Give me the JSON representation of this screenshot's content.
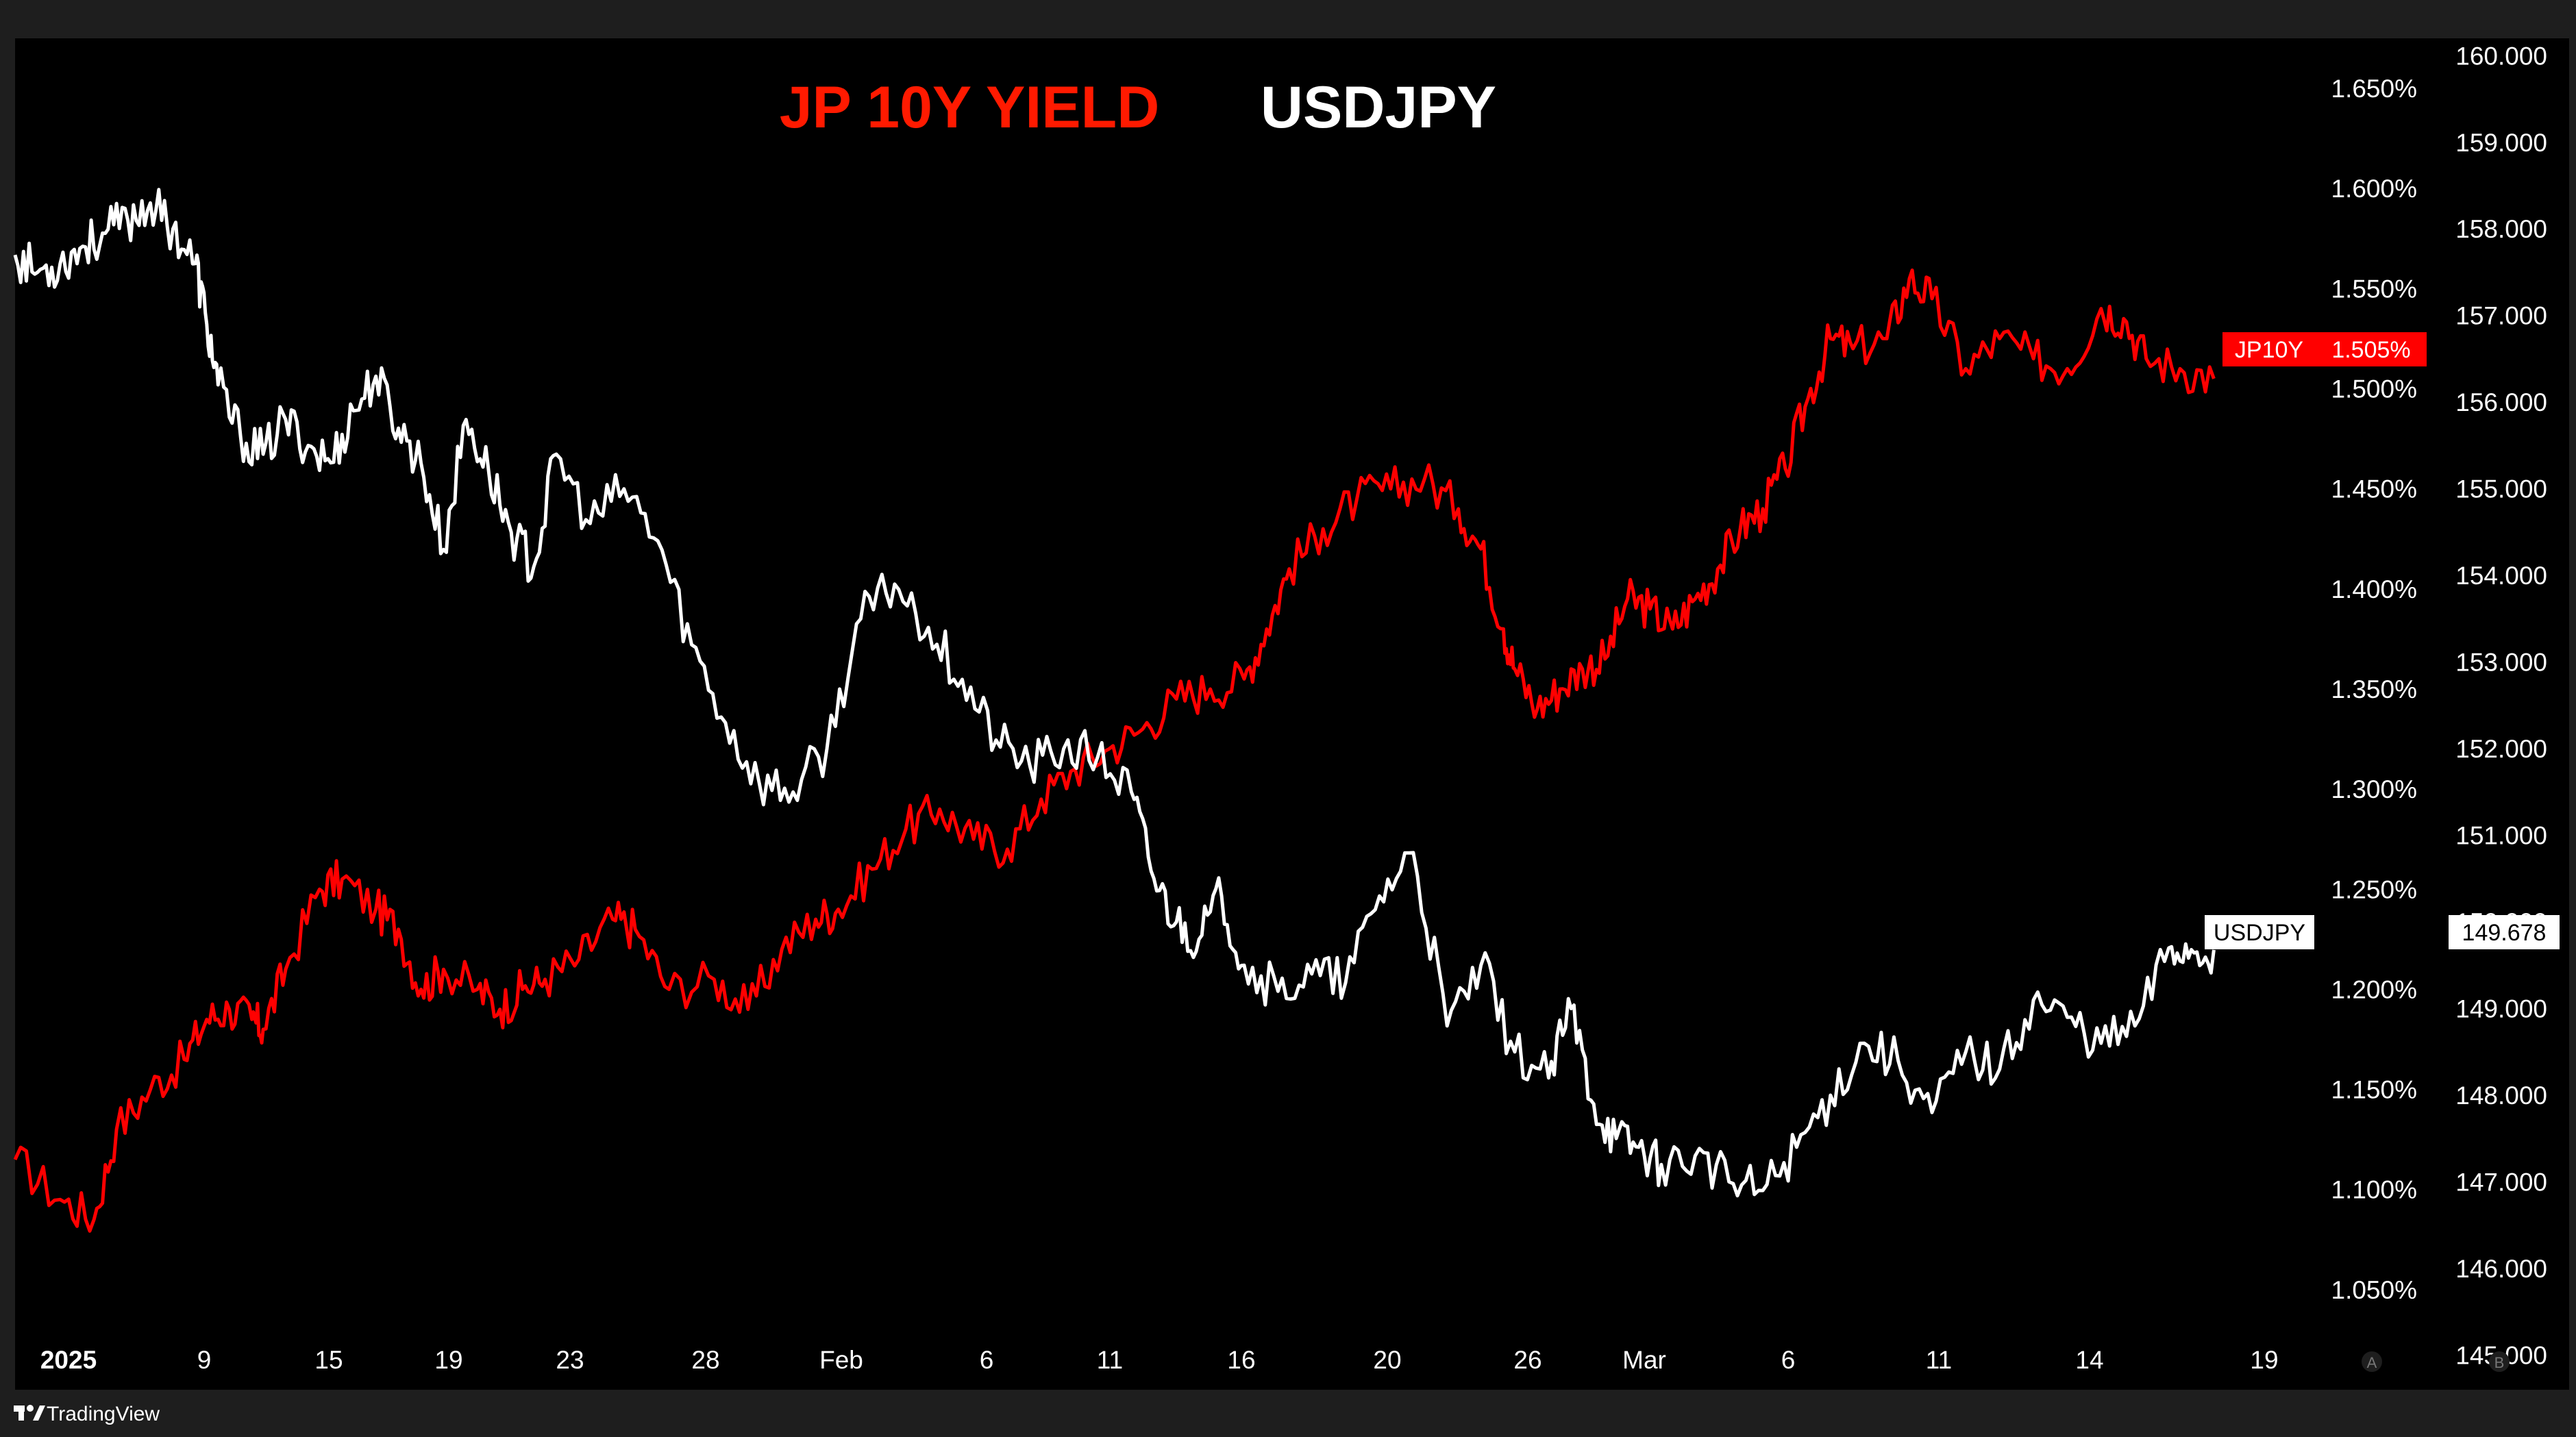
{
  "chart_data": {
    "type": "line",
    "title_left": "JP 10Y YIELD",
    "title_right": "USDJPY",
    "colors": {
      "background": "#000000",
      "frame": "#1e1e1e",
      "jp10y": "#ff0000",
      "usdjpy": "#ffffff"
    },
    "x_tick_labels": [
      "2025",
      "9",
      "15",
      "19",
      "23",
      "28",
      "Feb",
      "6",
      "11",
      "16",
      "20",
      "26",
      "Mar",
      "6",
      "11",
      "14",
      "19"
    ],
    "left_axis": {
      "name": "A",
      "ylim": [
        1.0,
        1.675
      ],
      "ticks": [
        "1.650%",
        "1.600%",
        "1.550%",
        "1.500%",
        "1.450%",
        "1.400%",
        "1.350%",
        "1.300%",
        "1.250%",
        "1.200%",
        "1.150%",
        "1.100%",
        "1.050%"
      ],
      "tick_values": [
        1.65,
        1.6,
        1.55,
        1.5,
        1.45,
        1.4,
        1.35,
        1.3,
        1.25,
        1.2,
        1.15,
        1.1,
        1.05
      ]
    },
    "right_axis": {
      "name": "B",
      "ylim": [
        144.6,
        160.2
      ],
      "ticks": [
        "160.000",
        "159.000",
        "158.000",
        "157.000",
        "156.000",
        "155.000",
        "154.000",
        "153.000",
        "152.000",
        "151.000",
        "150.000",
        "149.000",
        "148.000",
        "147.000",
        "146.000",
        "145.000"
      ],
      "tick_values": [
        160,
        159,
        158,
        157,
        156,
        155,
        154,
        153,
        152,
        151,
        150,
        149,
        148,
        147,
        146,
        145
      ]
    },
    "series": [
      {
        "name": "JP10Y",
        "axis": "left",
        "last_value_label": "1.505%",
        "x": [
          0,
          4,
          7,
          9,
          12,
          15,
          17,
          19,
          21,
          22,
          24,
          27,
          29,
          32,
          34,
          36,
          38,
          41,
          43,
          45,
          47,
          50,
          53,
          55,
          58,
          62,
          65,
          68,
          71,
          73,
          76,
          79,
          82,
          85,
          88,
          91,
          94,
          97,
          100,
          103,
          106,
          109,
          111,
          113,
          116,
          119,
          122,
          125,
          128,
          130,
          132,
          133,
          135,
          137,
          139,
          141,
          143,
          145,
          147,
          149,
          151,
          153,
          155,
          157,
          159,
          161,
          163,
          166,
          168,
          170,
          173,
          176,
          179,
          182,
          185,
          187,
          189,
          192,
          195
        ],
        "values": [
          1.115,
          1.095,
          1.085,
          1.13,
          1.15,
          1.165,
          1.185,
          1.19,
          1.185,
          1.18,
          1.21,
          1.25,
          1.255,
          1.24,
          1.23,
          1.2,
          1.21,
          1.2,
          1.19,
          1.2,
          1.205,
          1.215,
          1.235,
          1.23,
          1.2,
          1.205,
          1.19,
          1.22,
          1.235,
          1.24,
          1.26,
          1.28,
          1.29,
          1.275,
          1.27,
          1.295,
          1.31,
          1.32,
          1.33,
          1.345,
          1.35,
          1.355,
          1.38,
          1.41,
          1.43,
          1.445,
          1.45,
          1.455,
          1.44,
          1.42,
          1.38,
          1.36,
          1.34,
          1.35,
          1.36,
          1.365,
          1.395,
          1.39,
          1.38,
          1.395,
          1.41,
          1.43,
          1.44,
          1.46,
          1.495,
          1.525,
          1.52,
          1.525,
          1.555,
          1.545,
          1.51,
          1.525,
          1.515,
          1.51,
          1.54,
          1.535,
          1.515,
          1.51,
          1.505
        ]
      },
      {
        "name": "USDJPY",
        "axis": "right",
        "last_value_label": "149.678",
        "x": [
          0,
          2,
          4,
          6,
          8,
          10,
          12,
          14,
          16,
          17,
          18,
          20,
          22,
          24,
          26,
          28,
          30,
          32,
          34,
          36,
          38,
          40,
          42,
          44,
          46,
          48,
          51,
          54,
          57,
          60,
          63,
          66,
          69,
          72,
          75,
          78,
          81,
          84,
          87,
          90,
          93,
          96,
          99,
          101,
          103,
          105,
          107,
          109,
          112,
          115,
          118,
          121,
          124,
          127,
          130,
          133,
          136,
          138,
          140,
          142,
          144,
          146,
          149,
          152,
          155,
          158,
          161,
          164,
          167,
          170,
          173,
          176,
          179,
          182,
          185,
          188,
          191,
          193,
          195
        ],
        "values": [
          157.7,
          157.5,
          157.6,
          157.8,
          157.95,
          158.1,
          158.3,
          158.0,
          157.6,
          156.9,
          156.2,
          155.6,
          155.4,
          155.8,
          155.5,
          155.3,
          155.9,
          156.3,
          155.7,
          155.3,
          154.3,
          155.8,
          155.2,
          154.5,
          154.1,
          155.4,
          154.6,
          155.0,
          154.4,
          153.2,
          152.3,
          151.6,
          151.5,
          152.0,
          153.5,
          153.9,
          153.4,
          152.8,
          152.1,
          151.8,
          152.0,
          151.9,
          151.5,
          150.5,
          150.0,
          149.8,
          150.3,
          149.5,
          149.2,
          149.4,
          149.3,
          150.3,
          150.8,
          148.8,
          149.5,
          148.5,
          148.2,
          149.0,
          147.9,
          147.5,
          147.4,
          147.2,
          147.3,
          147.0,
          146.9,
          147.4,
          148.0,
          148.6,
          148.4,
          147.8,
          148.5,
          148.3,
          149.1,
          148.9,
          148.6,
          148.8,
          149.7,
          149.68,
          149.678
        ]
      }
    ],
    "grid": false,
    "legend": "none"
  },
  "footer": {
    "brand": "TradingView"
  }
}
